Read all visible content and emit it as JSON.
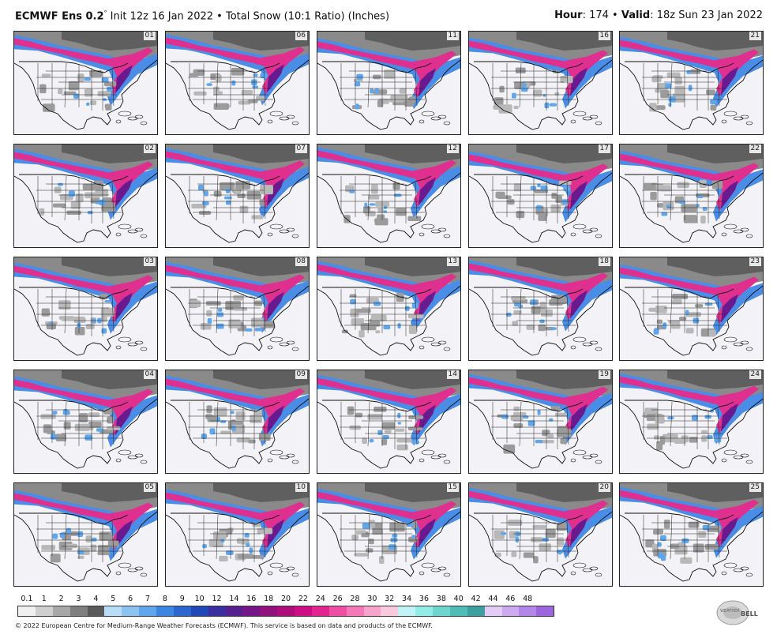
{
  "header": {
    "model_name": "ECMWF Ens 0.2",
    "model_degree": "°",
    "init_text": "Init 12z 16 Jan 2022",
    "separator": "•",
    "product": "Total Snow (10:1 Ratio) (Inches)",
    "hour_label": "Hour",
    "hour_value": ": 174",
    "valid_label": "Valid",
    "valid_value": ": 18z Sun 23 Jan 2022"
  },
  "members": [
    "01",
    "06",
    "11",
    "16",
    "21",
    "02",
    "07",
    "12",
    "17",
    "22",
    "03",
    "08",
    "13",
    "18",
    "23",
    "04",
    "09",
    "14",
    "19",
    "24",
    "05",
    "10",
    "15",
    "20",
    "25"
  ],
  "colorbar": {
    "tick_labels": [
      "0.1",
      "1",
      "2",
      "3",
      "4",
      "5",
      "6",
      "7",
      "8",
      "9",
      "10",
      "12",
      "14",
      "16",
      "18",
      "20",
      "22",
      "24",
      "26",
      "28",
      "30",
      "32",
      "34",
      "36",
      "38",
      "40",
      "42",
      "44",
      "46",
      "48"
    ],
    "colors": [
      "#f0f0f0",
      "#cfcfcf",
      "#a8a8a8",
      "#7f7f7f",
      "#5a5a5a",
      "#b9dcf7",
      "#8cc3f2",
      "#5fa6ec",
      "#3b86e0",
      "#2a67cf",
      "#2048b6",
      "#3a2fa1",
      "#57208f",
      "#741685",
      "#91117e",
      "#ae0d7c",
      "#cc0f85",
      "#e2268f",
      "#ee4fa5",
      "#f579b9",
      "#f8a3cc",
      "#f9c9dd",
      "#bff3f6",
      "#94ece9",
      "#6dd6cf",
      "#4fbdb6",
      "#3e9fa0",
      "#e3cdf6",
      "#cdaaf0",
      "#b387e8",
      "#9c66df"
    ]
  },
  "footer": {
    "copyright": "© 2022 European Centre for Medium-Range Weather Forecasts (ECMWF). This service is based on data and products of the ECMWF."
  },
  "logo": {
    "text_top": "WEATHER",
    "text_bottom": "BELL"
  }
}
